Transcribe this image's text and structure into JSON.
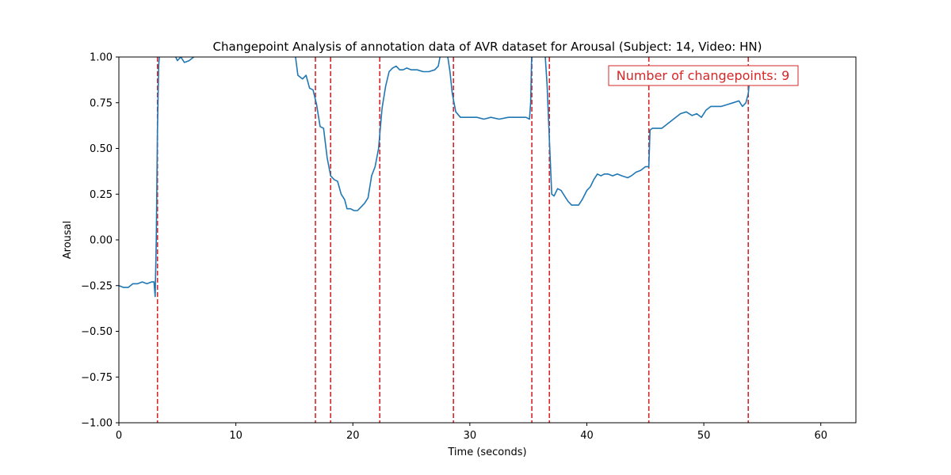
{
  "chart_data": {
    "type": "line",
    "title": "Changepoint Analysis of annotation data of AVR dataset for Arousal (Subject: 14, Video: HN)",
    "xlabel": "Time (seconds)",
    "ylabel": "Arousal",
    "xlim": [
      0,
      63
    ],
    "ylim": [
      -1.0,
      1.0
    ],
    "x_ticks": [
      0,
      10,
      20,
      30,
      40,
      50,
      60
    ],
    "x_tick_labels": [
      "0",
      "10",
      "20",
      "30",
      "40",
      "50",
      "60"
    ],
    "y_ticks": [
      -1.0,
      -0.75,
      -0.5,
      -0.25,
      0.0,
      0.25,
      0.5,
      0.75,
      1.0
    ],
    "y_tick_labels": [
      "−1.00",
      "−0.75",
      "−0.50",
      "−0.25",
      "0.00",
      "0.25",
      "0.50",
      "0.75",
      "1.00"
    ],
    "grid": false,
    "series": [
      {
        "color": "#1f77b4",
        "points": [
          [
            0.0,
            -0.25
          ],
          [
            0.4,
            -0.26
          ],
          [
            0.8,
            -0.26
          ],
          [
            1.2,
            -0.24
          ],
          [
            1.6,
            -0.24
          ],
          [
            2.0,
            -0.23
          ],
          [
            2.4,
            -0.24
          ],
          [
            2.8,
            -0.23
          ],
          [
            3.0,
            -0.23
          ],
          [
            3.1,
            -0.31
          ],
          [
            3.2,
            0.0
          ],
          [
            3.3,
            0.6
          ],
          [
            3.4,
            0.95
          ],
          [
            3.5,
            1.05
          ],
          [
            4.5,
            1.05
          ],
          [
            5.0,
            0.98
          ],
          [
            5.3,
            1.0
          ],
          [
            5.6,
            0.97
          ],
          [
            6.0,
            0.98
          ],
          [
            6.4,
            1.0
          ],
          [
            6.8,
            1.05
          ],
          [
            15.0,
            1.05
          ],
          [
            15.3,
            0.9
          ],
          [
            15.7,
            0.88
          ],
          [
            16.0,
            0.9
          ],
          [
            16.3,
            0.83
          ],
          [
            16.6,
            0.82
          ],
          [
            16.9,
            0.74
          ],
          [
            17.2,
            0.62
          ],
          [
            17.5,
            0.61
          ],
          [
            17.8,
            0.45
          ],
          [
            18.1,
            0.35
          ],
          [
            18.4,
            0.33
          ],
          [
            18.7,
            0.32
          ],
          [
            19.0,
            0.25
          ],
          [
            19.3,
            0.22
          ],
          [
            19.5,
            0.17
          ],
          [
            19.8,
            0.17
          ],
          [
            20.1,
            0.16
          ],
          [
            20.4,
            0.16
          ],
          [
            20.7,
            0.18
          ],
          [
            21.0,
            0.2
          ],
          [
            21.3,
            0.23
          ],
          [
            21.6,
            0.35
          ],
          [
            21.9,
            0.4
          ],
          [
            22.2,
            0.5
          ],
          [
            22.5,
            0.72
          ],
          [
            22.8,
            0.84
          ],
          [
            23.1,
            0.92
          ],
          [
            23.4,
            0.94
          ],
          [
            23.7,
            0.95
          ],
          [
            24.0,
            0.93
          ],
          [
            24.3,
            0.93
          ],
          [
            24.6,
            0.94
          ],
          [
            25.0,
            0.93
          ],
          [
            25.5,
            0.93
          ],
          [
            26.0,
            0.92
          ],
          [
            26.5,
            0.92
          ],
          [
            27.0,
            0.93
          ],
          [
            27.3,
            0.95
          ],
          [
            27.6,
            1.05
          ],
          [
            28.0,
            1.05
          ],
          [
            28.3,
            0.92
          ],
          [
            28.5,
            0.8
          ],
          [
            28.8,
            0.7
          ],
          [
            29.2,
            0.67
          ],
          [
            30.0,
            0.67
          ],
          [
            30.6,
            0.67
          ],
          [
            31.2,
            0.66
          ],
          [
            31.8,
            0.67
          ],
          [
            32.5,
            0.66
          ],
          [
            33.3,
            0.67
          ],
          [
            34.0,
            0.67
          ],
          [
            34.8,
            0.67
          ],
          [
            35.1,
            0.66
          ],
          [
            35.2,
            0.75
          ],
          [
            35.3,
            1.05
          ],
          [
            36.4,
            1.05
          ],
          [
            36.6,
            0.85
          ],
          [
            36.8,
            0.55
          ],
          [
            37.0,
            0.25
          ],
          [
            37.2,
            0.24
          ],
          [
            37.5,
            0.28
          ],
          [
            37.8,
            0.27
          ],
          [
            38.1,
            0.24
          ],
          [
            38.4,
            0.21
          ],
          [
            38.7,
            0.19
          ],
          [
            39.0,
            0.19
          ],
          [
            39.3,
            0.19
          ],
          [
            39.6,
            0.22
          ],
          [
            40.0,
            0.27
          ],
          [
            40.3,
            0.29
          ],
          [
            40.6,
            0.33
          ],
          [
            40.9,
            0.36
          ],
          [
            41.2,
            0.35
          ],
          [
            41.5,
            0.36
          ],
          [
            41.8,
            0.36
          ],
          [
            42.2,
            0.35
          ],
          [
            42.6,
            0.36
          ],
          [
            43.0,
            0.35
          ],
          [
            43.5,
            0.34
          ],
          [
            43.8,
            0.35
          ],
          [
            44.2,
            0.37
          ],
          [
            44.6,
            0.38
          ],
          [
            45.0,
            0.4
          ],
          [
            45.3,
            0.4
          ],
          [
            45.4,
            0.6
          ],
          [
            45.6,
            0.61
          ],
          [
            46.0,
            0.61
          ],
          [
            46.4,
            0.61
          ],
          [
            46.8,
            0.63
          ],
          [
            47.2,
            0.65
          ],
          [
            47.6,
            0.67
          ],
          [
            48.0,
            0.69
          ],
          [
            48.5,
            0.7
          ],
          [
            49.0,
            0.68
          ],
          [
            49.4,
            0.69
          ],
          [
            49.8,
            0.67
          ],
          [
            50.2,
            0.71
          ],
          [
            50.6,
            0.73
          ],
          [
            51.0,
            0.73
          ],
          [
            51.5,
            0.73
          ],
          [
            52.0,
            0.74
          ],
          [
            52.5,
            0.75
          ],
          [
            53.0,
            0.76
          ],
          [
            53.3,
            0.73
          ],
          [
            53.6,
            0.75
          ],
          [
            53.8,
            0.8
          ],
          [
            53.9,
            0.87
          ]
        ]
      }
    ],
    "changepoints": [
      3.3,
      16.8,
      18.1,
      22.3,
      28.6,
      35.3,
      36.8,
      45.3,
      53.8
    ],
    "changepoint_color": "#d62728",
    "annotation": {
      "text": "Number of changepoints: 9",
      "color": "#d62728",
      "placement": "top-right"
    }
  }
}
